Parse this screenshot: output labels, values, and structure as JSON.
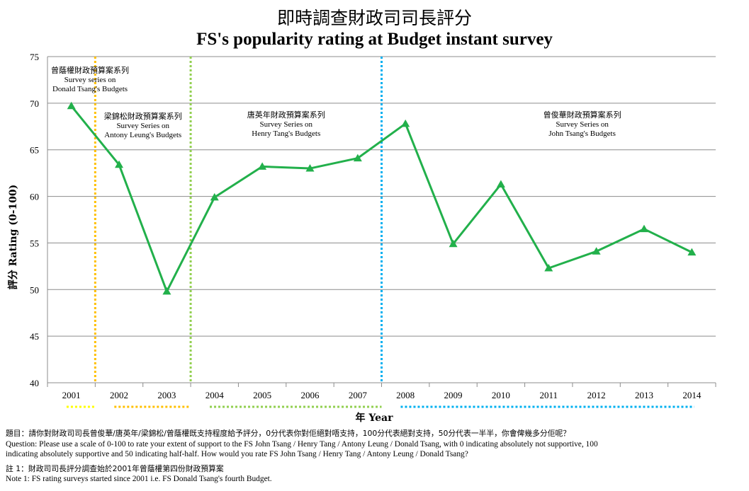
{
  "title": {
    "zh": "即時調查財政司司長評分",
    "en": "FS's popularity rating at Budget instant survey"
  },
  "chart_data": {
    "type": "line",
    "categories": [
      "2001",
      "2002",
      "2003",
      "2004",
      "2005",
      "2006",
      "2007",
      "2008",
      "2009",
      "2010",
      "2011",
      "2012",
      "2013",
      "2014"
    ],
    "series": [
      {
        "values": [
          69.7,
          63.4,
          49.8,
          59.9,
          63.2,
          63.0,
          64.1,
          67.8,
          54.9,
          61.3,
          52.3,
          54.1,
          56.5,
          54.0
        ]
      }
    ],
    "ylabel": "評分 Rating (0-100)",
    "xlabel": "年 Year",
    "ylim": [
      40,
      75
    ],
    "yticks": [
      40,
      45,
      50,
      55,
      60,
      65,
      70,
      75
    ],
    "grid": true,
    "line_color": "#22b04b",
    "era_boundaries": [
      {
        "after_category": "2001",
        "color": "#ffc000"
      },
      {
        "after_category": "2003",
        "color": "#92d050"
      },
      {
        "after_category": "2007",
        "color": "#00b0f0"
      }
    ],
    "eras": [
      {
        "from": "2001",
        "to": "2001",
        "color": "#ffff00",
        "zh": "曾蔭權財政預算案系列",
        "en1": "Survey  series on",
        "en2": "Donald Tsang's Budgets"
      },
      {
        "from": "2002",
        "to": "2003",
        "color": "#ffc000",
        "zh": "梁錦松財政預算案系列",
        "en1": "Survey Series on",
        "en2": "Antony Leung's Budgets"
      },
      {
        "from": "2004",
        "to": "2007",
        "color": "#92d050",
        "zh": "唐英年財政預算案系列",
        "en1": "Survey Series on",
        "en2": "Henry Tang's Budgets"
      },
      {
        "from": "2008",
        "to": "2014",
        "color": "#00b0f0",
        "zh": "曾俊華財政預算案系列",
        "en1": "Survey Series on",
        "en2": "John Tsang's Budgets"
      }
    ]
  },
  "notes": {
    "question_zh": "題目：請你對財政司司長曾俊華/唐英年/梁錦松/曾蔭權既支持程度給予評分，0分代表你對佢絕對唔支持，100分代表絕對支持，50分代表一半半，你會俾幾多分佢呢？",
    "question_en_1": "Question: Please use a scale of 0-100 to rate your extent of support to the FS John Tsang / Henry Tang /  Antony Leung / Donald Tsang, with 0 indicating absolutely not supportive, 100",
    "question_en_2": "indicating absolutely supportive and 50 indicating half-half.  How would you rate FS John Tsang / Henry Tang /  Antony Leung / Donald Tsang?",
    "note_zh": "註 1：財政司司長評分調查始於2001年曾蔭權第四份財政預算案",
    "note_en": "Note 1: FS rating surveys started since 2001 i.e.  FS Donald Tsang's fourth Budget."
  }
}
